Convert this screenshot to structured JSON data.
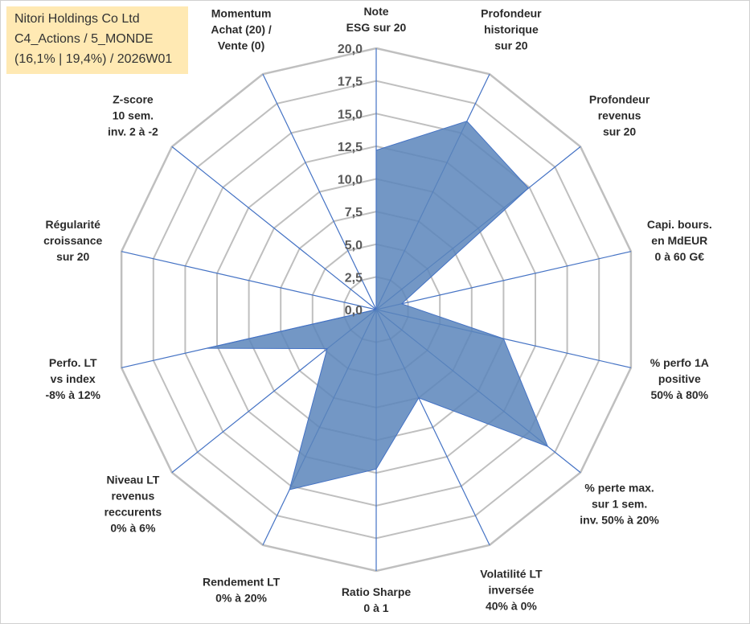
{
  "infobox": {
    "line1": "Nitori Holdings Co Ltd",
    "line2": "C4_Actions / 5_MONDE",
    "line3": "(16,1% | 19,4%) / 2026W01"
  },
  "chart_data": {
    "type": "radar",
    "title": "",
    "rmin": 0,
    "rmax": 20,
    "ticks": [
      "0,0",
      "2,5",
      "5,0",
      "7,5",
      "10,0",
      "12,5",
      "15,0",
      "17,5",
      "20,0"
    ],
    "grid": true,
    "legend": "none",
    "colors": {
      "fill": "#5b85bb",
      "stroke": "#4472c4",
      "axis": "#4472c4",
      "grid": "#bfbfbf"
    },
    "axes": [
      [
        "Note",
        "ESG sur 20"
      ],
      [
        "Profondeur",
        "historique",
        "sur 20"
      ],
      [
        "Profondeur",
        "revenus",
        "sur 20"
      ],
      [
        "Capi. bours.",
        "en MdEUR",
        "0 à 60 G€"
      ],
      [
        "% perfo 1A",
        "positive",
        "50% à 80%"
      ],
      [
        "% perte max.",
        "sur 1 sem.",
        "inv. 50% à 20%"
      ],
      [
        "Volatilité LT",
        "inversée",
        "40% à 0%"
      ],
      [
        "Ratio Sharpe",
        "0 à 1"
      ],
      [
        "Rendement LT",
        "0% à 20%"
      ],
      [
        "Niveau LT",
        "revenus",
        "reccurents",
        "0% à 6%"
      ],
      [
        "Perfo. LT",
        "vs index",
        "-8% à 12%"
      ],
      [
        "Régularité",
        "croissance",
        "sur 20"
      ],
      [
        "Z-score",
        "10 sem.",
        "inv. 2 à -2"
      ],
      [
        "Momentum",
        "Achat (20) /",
        "Vente (0)"
      ]
    ],
    "series": [
      {
        "values": [
          12.2,
          16.0,
          14.9,
          2.0,
          10.0,
          16.8,
          7.5,
          12.2,
          15.3,
          4.8,
          13.3,
          0.0,
          0.0,
          0.0
        ]
      }
    ]
  }
}
